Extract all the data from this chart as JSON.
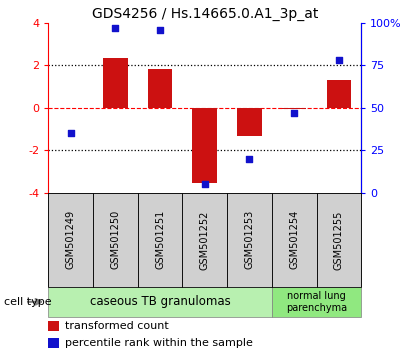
{
  "title": "GDS4256 / Hs.14665.0.A1_3p_at",
  "samples": [
    "GSM501249",
    "GSM501250",
    "GSM501251",
    "GSM501252",
    "GSM501253",
    "GSM501254",
    "GSM501255"
  ],
  "transformed_count": [
    0,
    2.35,
    1.85,
    -3.55,
    -1.3,
    -0.05,
    1.3
  ],
  "percentile_rank_pct": [
    35,
    97,
    96,
    5,
    20,
    47,
    78
  ],
  "bar_color": "#cc1111",
  "dot_color": "#1111cc",
  "ylim": [
    -4,
    4
  ],
  "yticks_left": [
    -4,
    -2,
    0,
    2,
    4
  ],
  "yticks_right_vals": [
    0,
    25,
    50,
    75,
    100
  ],
  "yticks_right_labels": [
    "0",
    "25",
    "50",
    "75",
    "100%"
  ],
  "cell_groups": [
    {
      "label": "caseous TB granulomas",
      "indices": [
        0,
        1,
        2,
        3,
        4
      ],
      "color": "#b8f0b0"
    },
    {
      "label": "normal lung\nparenchyma",
      "indices": [
        5,
        6
      ],
      "color": "#90e880"
    }
  ],
  "legend_items": [
    {
      "color": "#cc1111",
      "label": "transformed count"
    },
    {
      "color": "#1111cc",
      "label": "percentile rank within the sample"
    }
  ],
  "cell_type_label": "cell type",
  "xtick_bg": "#d0d0d0",
  "background_color": "#ffffff"
}
